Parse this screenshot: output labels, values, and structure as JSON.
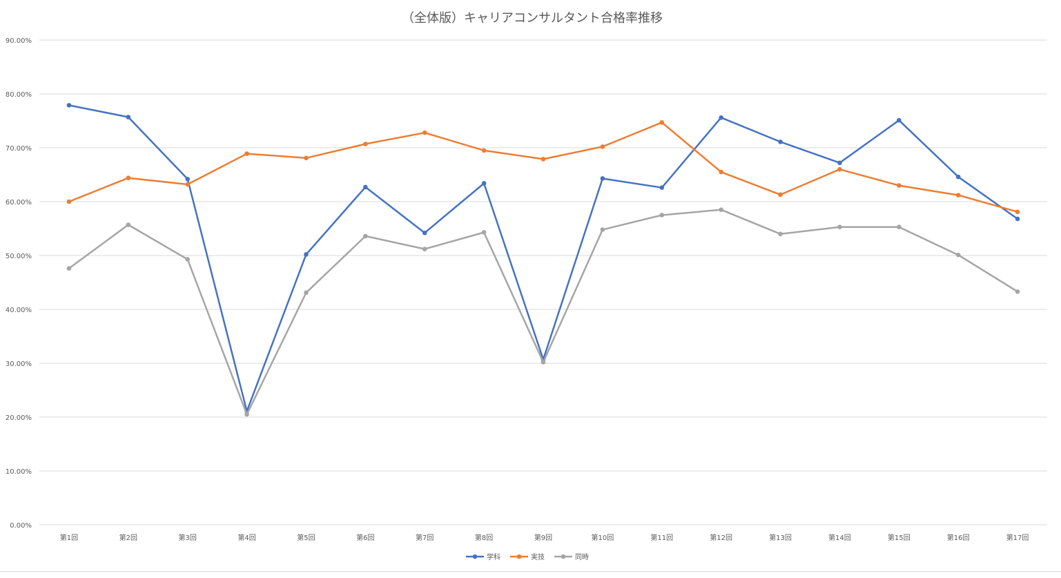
{
  "chart_data": {
    "type": "line",
    "title": "（全体版）キャリアコンサルタント合格率推移",
    "xlabel": "",
    "ylabel": "",
    "ylim": [
      0,
      0.9
    ],
    "yticks": [
      "0.00%",
      "10.00%",
      "20.00%",
      "30.00%",
      "40.00%",
      "50.00%",
      "60.00%",
      "70.00%",
      "80.00%",
      "90.00%"
    ],
    "grid": true,
    "legend_position": "bottom",
    "categories": [
      "第1回",
      "第2回",
      "第3回",
      "第4回",
      "第5回",
      "第6回",
      "第7回",
      "第8回",
      "第9回",
      "第10回",
      "第11回",
      "第12回",
      "第13回",
      "第14回",
      "第15回",
      "第16回",
      "第17回"
    ],
    "series": [
      {
        "name": "学科",
        "color": "#4472c4",
        "values": [
          0.779,
          0.757,
          0.642,
          0.211,
          0.502,
          0.627,
          0.542,
          0.634,
          0.307,
          0.643,
          0.626,
          0.756,
          0.711,
          0.672,
          0.751,
          0.646,
          0.568
        ]
      },
      {
        "name": "実技",
        "color": "#ed7d31",
        "values": [
          0.6,
          0.644,
          0.632,
          0.689,
          0.681,
          0.707,
          0.728,
          0.695,
          0.679,
          0.702,
          0.747,
          0.655,
          0.613,
          0.66,
          0.63,
          0.612,
          0.581
        ]
      },
      {
        "name": "同時",
        "color": "#a5a5a5",
        "values": [
          0.476,
          0.557,
          0.493,
          0.205,
          0.431,
          0.536,
          0.512,
          0.543,
          0.302,
          0.548,
          0.575,
          0.585,
          0.54,
          0.553,
          0.553,
          0.501,
          0.433
        ]
      }
    ]
  }
}
